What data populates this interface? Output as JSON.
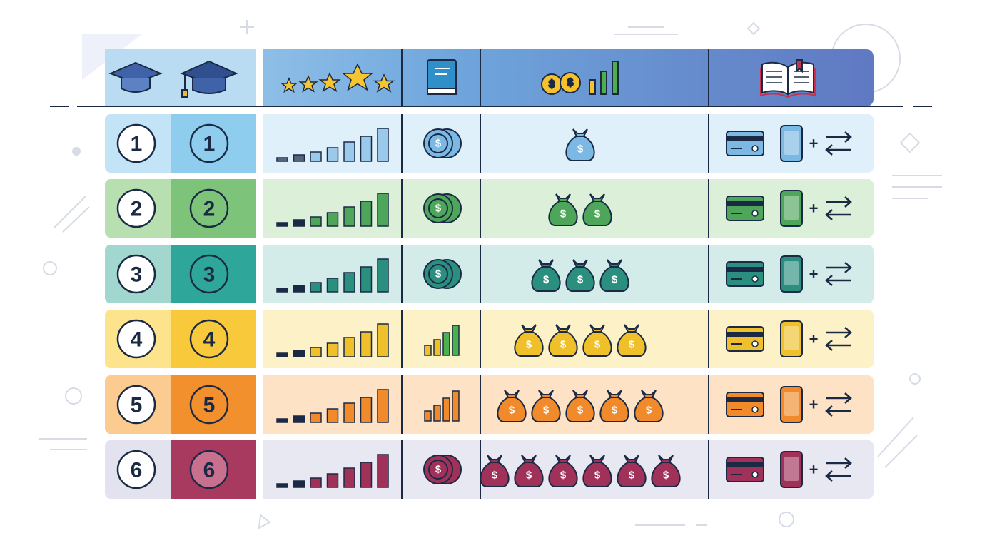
{
  "rows": [
    {
      "number": "1"
    },
    {
      "number": "2"
    },
    {
      "number": "3"
    },
    {
      "number": "4"
    },
    {
      "number": "5"
    },
    {
      "number": "6"
    }
  ],
  "currency_symbol": "$",
  "plus": "+"
}
